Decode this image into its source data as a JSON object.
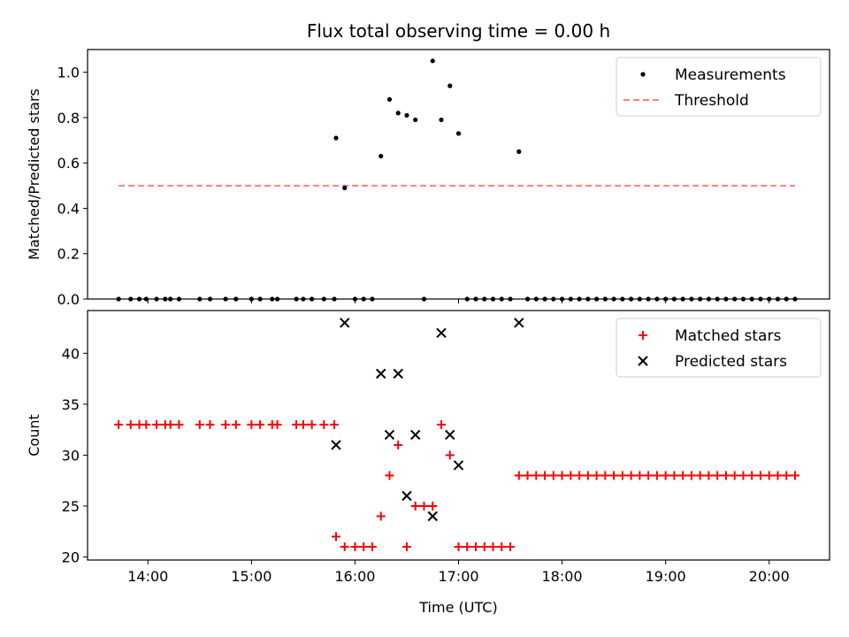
{
  "chart_data": [
    {
      "type": "scatter",
      "title": "Flux total observing time = 0.00 h",
      "xlabel": "",
      "ylabel": "Matched/Predicted stars",
      "ylim": [
        0,
        1.1
      ],
      "yticks": [
        "0.0",
        "0.2",
        "0.4",
        "0.6",
        "0.8",
        "1.0"
      ],
      "ytick_values": [
        0,
        0.2,
        0.4,
        0.6,
        0.8,
        1.0
      ],
      "xlim": [
        "13:25",
        "20:35"
      ],
      "grid": false,
      "legend": {
        "placement": "top-right",
        "entries": [
          {
            "label": "Measurements",
            "marker": "dot",
            "color": "#000000"
          },
          {
            "label": "Threshold",
            "marker": "dashed-line",
            "color": "#ff7f7f"
          }
        ]
      },
      "threshold": {
        "value": 0.5,
        "x_start": "13:43",
        "x_end": "20:15",
        "color": "#ff7f7f"
      },
      "series": [
        {
          "name": "Measurements",
          "color": "#000000",
          "points": [
            [
              "13:43",
              0
            ],
            [
              "13:50",
              0
            ],
            [
              "13:55",
              0
            ],
            [
              "13:59",
              0
            ],
            [
              "14:05",
              0
            ],
            [
              "14:10",
              0
            ],
            [
              "14:13",
              0
            ],
            [
              "14:18",
              0
            ],
            [
              "14:30",
              0
            ],
            [
              "14:36",
              0
            ],
            [
              "14:45",
              0
            ],
            [
              "14:51",
              0
            ],
            [
              "15:00",
              0
            ],
            [
              "15:05",
              0
            ],
            [
              "15:12",
              0
            ],
            [
              "15:15",
              0
            ],
            [
              "15:26",
              0
            ],
            [
              "15:30",
              0
            ],
            [
              "15:35",
              0
            ],
            [
              "15:42",
              0
            ],
            [
              "15:48",
              0
            ],
            [
              "15:49",
              0.71
            ],
            [
              "15:54",
              0.49
            ],
            [
              "16:00",
              0
            ],
            [
              "16:05",
              0
            ],
            [
              "16:10",
              0
            ],
            [
              "16:15",
              0.63
            ],
            [
              "16:20",
              0.88
            ],
            [
              "16:25",
              0.82
            ],
            [
              "16:30",
              0.81
            ],
            [
              "16:35",
              0.79
            ],
            [
              "16:40",
              0
            ],
            [
              "16:45",
              1.05
            ],
            [
              "16:50",
              0.79
            ],
            [
              "16:55",
              0.94
            ],
            [
              "17:00",
              0.73
            ],
            [
              "17:05",
              0
            ],
            [
              "17:10",
              0
            ],
            [
              "17:15",
              0
            ],
            [
              "17:20",
              0
            ],
            [
              "17:25",
              0
            ],
            [
              "17:30",
              0
            ],
            [
              "17:35",
              0.65
            ],
            [
              "17:40",
              0
            ],
            [
              "17:45",
              0
            ],
            [
              "17:50",
              0
            ],
            [
              "17:55",
              0
            ],
            [
              "18:00",
              0
            ],
            [
              "18:05",
              0
            ],
            [
              "18:10",
              0
            ],
            [
              "18:15",
              0
            ],
            [
              "18:20",
              0
            ],
            [
              "18:25",
              0
            ],
            [
              "18:30",
              0
            ],
            [
              "18:35",
              0
            ],
            [
              "18:40",
              0
            ],
            [
              "18:45",
              0
            ],
            [
              "18:50",
              0
            ],
            [
              "18:55",
              0
            ],
            [
              "19:00",
              0
            ],
            [
              "19:05",
              0
            ],
            [
              "19:10",
              0
            ],
            [
              "19:15",
              0
            ],
            [
              "19:20",
              0
            ],
            [
              "19:25",
              0
            ],
            [
              "19:30",
              0
            ],
            [
              "19:35",
              0
            ],
            [
              "19:40",
              0
            ],
            [
              "19:45",
              0
            ],
            [
              "19:50",
              0
            ],
            [
              "19:55",
              0
            ],
            [
              "20:00",
              0
            ],
            [
              "20:05",
              0
            ],
            [
              "20:10",
              0
            ],
            [
              "20:15",
              0
            ]
          ]
        }
      ]
    },
    {
      "type": "scatter",
      "title": "",
      "xlabel": "Time (UTC)",
      "ylabel": "Count",
      "ylim": [
        19.7,
        44.2
      ],
      "yticks": [
        "20",
        "25",
        "30",
        "35",
        "40"
      ],
      "ytick_values": [
        20,
        25,
        30,
        35,
        40
      ],
      "xlim": [
        "13:25",
        "20:35"
      ],
      "xticks": [
        "14:00",
        "15:00",
        "16:00",
        "17:00",
        "18:00",
        "19:00",
        "20:00"
      ],
      "grid": false,
      "legend": {
        "placement": "top-right",
        "entries": [
          {
            "label": "Matched stars",
            "marker": "plus",
            "color": "#ff0000"
          },
          {
            "label": "Predicted stars",
            "marker": "x",
            "color": "#000000"
          }
        ]
      },
      "series": [
        {
          "name": "Matched stars",
          "marker": "plus",
          "color": "#ff0000",
          "points": [
            [
              "13:43",
              33
            ],
            [
              "13:50",
              33
            ],
            [
              "13:55",
              33
            ],
            [
              "13:59",
              33
            ],
            [
              "14:05",
              33
            ],
            [
              "14:10",
              33
            ],
            [
              "14:13",
              33
            ],
            [
              "14:18",
              33
            ],
            [
              "14:30",
              33
            ],
            [
              "14:36",
              33
            ],
            [
              "14:45",
              33
            ],
            [
              "14:51",
              33
            ],
            [
              "15:00",
              33
            ],
            [
              "15:05",
              33
            ],
            [
              "15:12",
              33
            ],
            [
              "15:15",
              33
            ],
            [
              "15:26",
              33
            ],
            [
              "15:30",
              33
            ],
            [
              "15:35",
              33
            ],
            [
              "15:42",
              33
            ],
            [
              "15:48",
              33
            ],
            [
              "15:49",
              22
            ],
            [
              "15:54",
              21
            ],
            [
              "16:00",
              21
            ],
            [
              "16:05",
              21
            ],
            [
              "16:10",
              21
            ],
            [
              "16:15",
              24
            ],
            [
              "16:20",
              28
            ],
            [
              "16:25",
              31
            ],
            [
              "16:30",
              21
            ],
            [
              "16:35",
              25
            ],
            [
              "16:40",
              25
            ],
            [
              "16:45",
              25
            ],
            [
              "16:50",
              33
            ],
            [
              "16:55",
              30
            ],
            [
              "17:00",
              21
            ],
            [
              "17:05",
              21
            ],
            [
              "17:10",
              21
            ],
            [
              "17:15",
              21
            ],
            [
              "17:20",
              21
            ],
            [
              "17:25",
              21
            ],
            [
              "17:30",
              21
            ],
            [
              "17:35",
              28
            ],
            [
              "17:40",
              28
            ],
            [
              "17:45",
              28
            ],
            [
              "17:50",
              28
            ],
            [
              "17:55",
              28
            ],
            [
              "18:00",
              28
            ],
            [
              "18:05",
              28
            ],
            [
              "18:10",
              28
            ],
            [
              "18:15",
              28
            ],
            [
              "18:20",
              28
            ],
            [
              "18:25",
              28
            ],
            [
              "18:30",
              28
            ],
            [
              "18:35",
              28
            ],
            [
              "18:40",
              28
            ],
            [
              "18:45",
              28
            ],
            [
              "18:50",
              28
            ],
            [
              "18:55",
              28
            ],
            [
              "19:00",
              28
            ],
            [
              "19:05",
              28
            ],
            [
              "19:10",
              28
            ],
            [
              "19:15",
              28
            ],
            [
              "19:20",
              28
            ],
            [
              "19:25",
              28
            ],
            [
              "19:30",
              28
            ],
            [
              "19:35",
              28
            ],
            [
              "19:40",
              28
            ],
            [
              "19:45",
              28
            ],
            [
              "19:50",
              28
            ],
            [
              "19:55",
              28
            ],
            [
              "20:00",
              28
            ],
            [
              "20:05",
              28
            ],
            [
              "20:10",
              28
            ],
            [
              "20:15",
              28
            ]
          ]
        },
        {
          "name": "Predicted stars",
          "marker": "x",
          "color": "#000000",
          "points": [
            [
              "15:49",
              31
            ],
            [
              "15:54",
              43
            ],
            [
              "16:15",
              38
            ],
            [
              "16:20",
              32
            ],
            [
              "16:25",
              38
            ],
            [
              "16:30",
              26
            ],
            [
              "16:35",
              32
            ],
            [
              "16:45",
              24
            ],
            [
              "16:50",
              42
            ],
            [
              "16:55",
              32
            ],
            [
              "17:00",
              29
            ],
            [
              "17:35",
              43
            ]
          ]
        }
      ]
    }
  ]
}
